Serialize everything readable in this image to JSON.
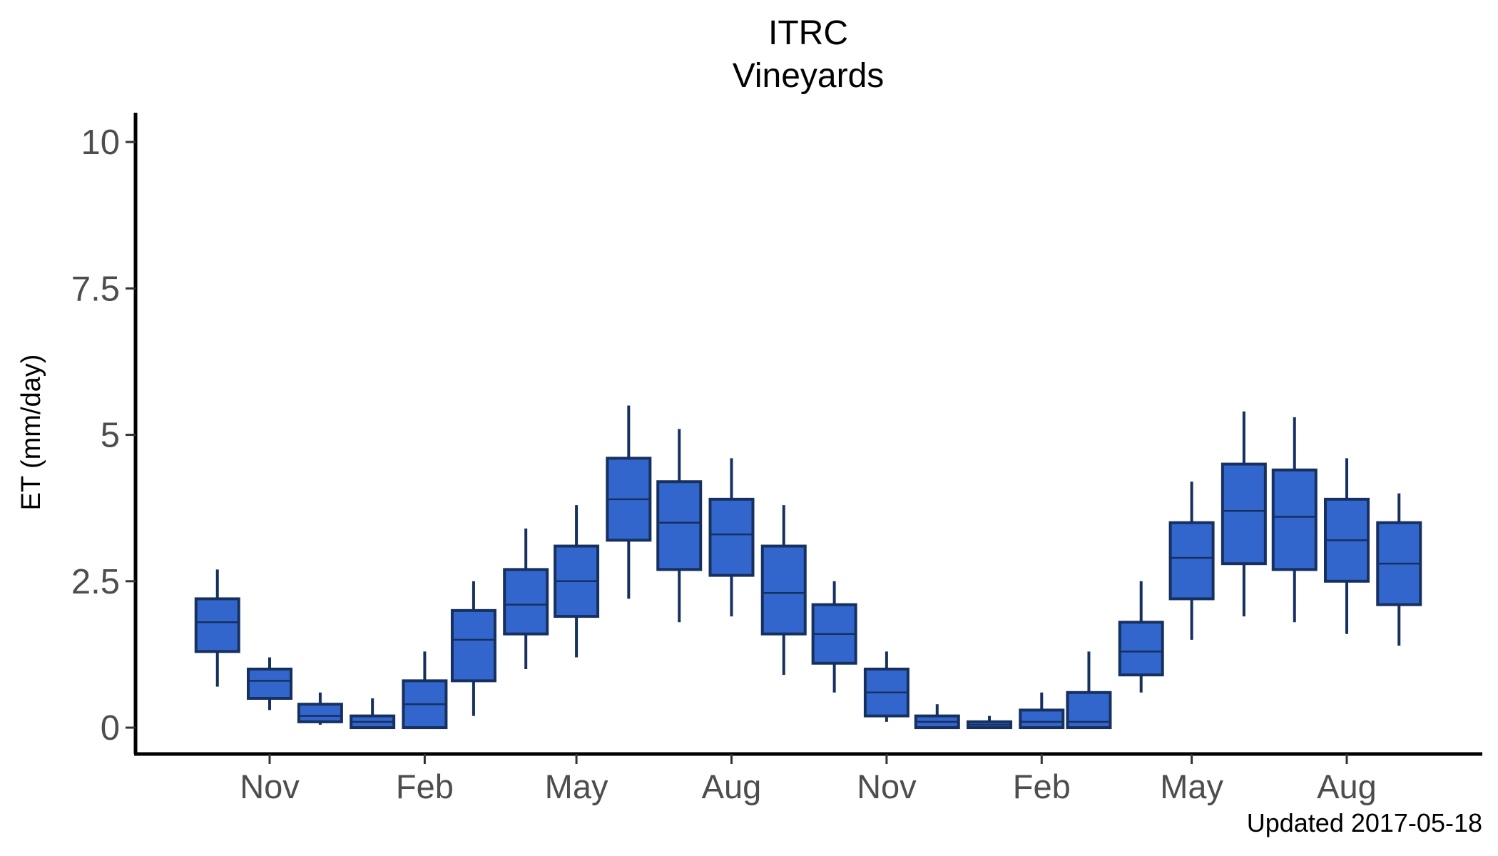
{
  "chart_data": {
    "type": "boxplot",
    "title": "ITRC",
    "subtitle": "Vineyards",
    "xlabel": "",
    "ylabel": "ET (mm/day)",
    "caption": "Updated  2017-05-18",
    "ylim": [
      -0.45,
      10.5
    ],
    "yticks": [
      {
        "value": 0,
        "label": "0"
      },
      {
        "value": 2.5,
        "label": "2.5"
      },
      {
        "value": 5,
        "label": "5"
      },
      {
        "value": 7.5,
        "label": "7.5"
      },
      {
        "value": 10,
        "label": "10"
      }
    ],
    "xticks": [
      {
        "date": "2015-11-01",
        "label": "Nov"
      },
      {
        "date": "2016-02-01",
        "label": "Feb"
      },
      {
        "date": "2016-05-01",
        "label": "May"
      },
      {
        "date": "2016-08-01",
        "label": "Aug"
      },
      {
        "date": "2016-11-01",
        "label": "Nov"
      },
      {
        "date": "2017-02-01",
        "label": "Feb"
      },
      {
        "date": "2017-05-01",
        "label": "May"
      },
      {
        "date": "2017-08-01",
        "label": "Aug"
      }
    ],
    "boxes": [
      {
        "date": "2015-10-01",
        "min": 0.7,
        "q1": 1.3,
        "median": 1.8,
        "q3": 2.2,
        "max": 2.7
      },
      {
        "date": "2015-11-01",
        "min": 0.3,
        "q1": 0.5,
        "median": 0.8,
        "q3": 1.0,
        "max": 1.2
      },
      {
        "date": "2015-12-01",
        "min": 0.05,
        "q1": 0.1,
        "median": 0.2,
        "q3": 0.4,
        "max": 0.6
      },
      {
        "date": "2016-01-01",
        "min": 0.0,
        "q1": 0.0,
        "median": 0.1,
        "q3": 0.2,
        "max": 0.5
      },
      {
        "date": "2016-02-01",
        "min": 0.0,
        "q1": 0.0,
        "median": 0.4,
        "q3": 0.8,
        "max": 1.3
      },
      {
        "date": "2016-03-01",
        "min": 0.2,
        "q1": 0.8,
        "median": 1.5,
        "q3": 2.0,
        "max": 2.5
      },
      {
        "date": "2016-04-01",
        "min": 1.0,
        "q1": 1.6,
        "median": 2.1,
        "q3": 2.7,
        "max": 3.4
      },
      {
        "date": "2016-05-01",
        "min": 1.2,
        "q1": 1.9,
        "median": 2.5,
        "q3": 3.1,
        "max": 3.8
      },
      {
        "date": "2016-06-01",
        "min": 2.2,
        "q1": 3.2,
        "median": 3.9,
        "q3": 4.6,
        "max": 5.5
      },
      {
        "date": "2016-07-01",
        "min": 1.8,
        "q1": 2.7,
        "median": 3.5,
        "q3": 4.2,
        "max": 5.1
      },
      {
        "date": "2016-08-01",
        "min": 1.9,
        "q1": 2.6,
        "median": 3.3,
        "q3": 3.9,
        "max": 4.6
      },
      {
        "date": "2016-09-01",
        "min": 0.9,
        "q1": 1.6,
        "median": 2.3,
        "q3": 3.1,
        "max": 3.8
      },
      {
        "date": "2016-10-01",
        "min": 0.6,
        "q1": 1.1,
        "median": 1.6,
        "q3": 2.1,
        "max": 2.5
      },
      {
        "date": "2016-11-01",
        "min": 0.1,
        "q1": 0.2,
        "median": 0.6,
        "q3": 1.0,
        "max": 1.3
      },
      {
        "date": "2016-12-01",
        "min": 0.0,
        "q1": 0.0,
        "median": 0.1,
        "q3": 0.2,
        "max": 0.4
      },
      {
        "date": "2017-01-01",
        "min": 0.0,
        "q1": 0.0,
        "median": 0.05,
        "q3": 0.1,
        "max": 0.2
      },
      {
        "date": "2017-02-01",
        "min": 0.0,
        "q1": 0.0,
        "median": 0.1,
        "q3": 0.3,
        "max": 0.6
      },
      {
        "date": "2017-03-01",
        "min": 0.0,
        "q1": 0.0,
        "median": 0.1,
        "q3": 0.6,
        "max": 1.3
      },
      {
        "date": "2017-04-01",
        "min": 0.6,
        "q1": 0.9,
        "median": 1.3,
        "q3": 1.8,
        "max": 2.5
      },
      {
        "date": "2017-05-01",
        "min": 1.5,
        "q1": 2.2,
        "median": 2.9,
        "q3": 3.5,
        "max": 4.2
      },
      {
        "date": "2017-06-01",
        "min": 1.9,
        "q1": 2.8,
        "median": 3.7,
        "q3": 4.5,
        "max": 5.4
      },
      {
        "date": "2017-07-01",
        "min": 1.8,
        "q1": 2.7,
        "median": 3.6,
        "q3": 4.4,
        "max": 5.3
      },
      {
        "date": "2017-08-01",
        "min": 1.6,
        "q1": 2.5,
        "median": 3.2,
        "q3": 3.9,
        "max": 4.6
      },
      {
        "date": "2017-09-01",
        "min": 1.4,
        "q1": 2.1,
        "median": 2.8,
        "q3": 3.5,
        "max": 4.0
      }
    ],
    "colors": {
      "box_fill": "#3366cc",
      "box_stroke": "#16305f",
      "axis": "#000000",
      "tick_text": "#4d4d4d"
    },
    "grid": false,
    "legend": "none"
  }
}
